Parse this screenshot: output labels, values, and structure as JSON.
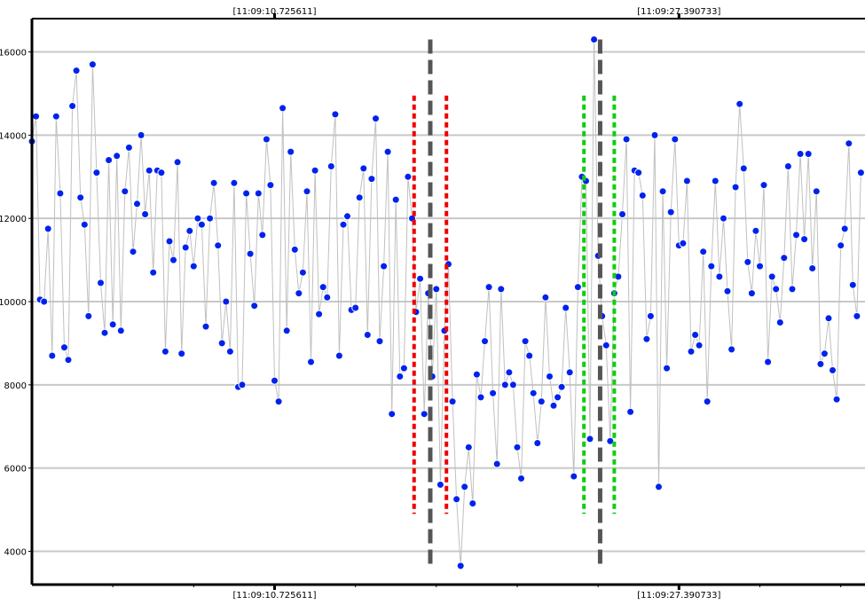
{
  "colors": {
    "background": "#ffffff",
    "grid": "#c8c8c8",
    "axis": "#000000",
    "series_line": "#c0c0c0",
    "series_point": "#0022ee",
    "point_edge": "#ffffff",
    "marker_gray": "#555555",
    "marker_red": "#ee0000",
    "marker_green": "#11cc11"
  },
  "chart_data": {
    "type": "scatter",
    "title": "",
    "xlabel": "",
    "ylabel": "",
    "xlim": [
      0,
      206
    ],
    "ylim": [
      3200,
      16800
    ],
    "grid": {
      "horizontal": true,
      "vertical": false
    },
    "yticks": [
      4000,
      6000,
      8000,
      10000,
      12000,
      14000,
      16000
    ],
    "time_labels": [
      {
        "x": 60,
        "text": "[11:09:10.725611]"
      },
      {
        "x": 160,
        "text": "[11:09:27.390733]"
      }
    ],
    "minor_ticks_x": [
      20,
      40,
      80,
      100,
      120,
      140,
      180,
      200
    ],
    "series": [
      {
        "values": [
          13850,
          14450,
          10050,
          10000,
          11750,
          8700,
          14450,
          12600,
          8900,
          8600,
          14700,
          15550,
          12500,
          11850,
          9650,
          15700,
          13100,
          10450,
          9250,
          13400,
          9450,
          13500,
          9300,
          12650,
          13700,
          11200,
          12350,
          14000,
          12100,
          13150,
          10700,
          13150,
          13100,
          8800,
          11450,
          11000,
          13350,
          8750,
          11300,
          11700,
          10850,
          12000,
          11850,
          9400,
          12000,
          12850,
          11350,
          9000,
          10000,
          8800,
          12850,
          7950,
          8000,
          12600,
          11150,
          9900,
          12600,
          11600,
          13900,
          12800,
          8100,
          7600,
          14650,
          9300,
          13600,
          11250,
          10200,
          10700,
          12650,
          8550,
          13150,
          9700,
          10350,
          10100,
          13250,
          14500,
          8700,
          11850,
          12050,
          9800,
          9850,
          12500,
          13200,
          9200,
          12950,
          14400,
          9050,
          10850,
          13600,
          7300,
          12450,
          8200,
          8400,
          13000,
          12000,
          9750,
          10550,
          7300,
          10200,
          8200,
          10300,
          5600,
          9300,
          10900,
          7600,
          5250,
          3650,
          5550,
          6500,
          5150,
          8250,
          7700,
          9050,
          10350,
          7800,
          6100,
          10300,
          8000,
          8300,
          8000,
          6500,
          5750,
          9050,
          8700,
          7800,
          6600,
          7600,
          10100,
          8200,
          7500,
          7700,
          7950,
          9850,
          8300,
          5800,
          10350,
          13000,
          12900,
          6700,
          16300,
          11100,
          9650,
          8950,
          6650,
          10200,
          10600,
          12100,
          13900,
          7350,
          13150,
          13100,
          12550,
          9100,
          9650,
          14000,
          5550,
          12650,
          8400,
          12150,
          13900,
          11350,
          11400,
          12900,
          8800,
          9200,
          8950,
          11200,
          7600,
          10850,
          12900,
          10600,
          12000,
          10250,
          8850,
          12750,
          14750,
          13200,
          10950,
          10200,
          11700,
          10850,
          12800,
          8550,
          10600,
          10300,
          9500,
          11050,
          13250,
          10300,
          11600,
          13550,
          11500,
          13550,
          10800,
          12650,
          8500,
          8750,
          9600,
          8350,
          7650,
          11350,
          11750,
          13800,
          10400,
          9650,
          13100
        ]
      }
    ],
    "vertical_markers": [
      {
        "x": 98.5,
        "color": "gray",
        "style": "long-dash",
        "from": 3600,
        "to": 16300
      },
      {
        "x": 94.5,
        "color": "red",
        "style": "short-dash",
        "from": 4900,
        "to": 14950
      },
      {
        "x": 102.5,
        "color": "red",
        "style": "short-dash",
        "from": 4900,
        "to": 14950
      },
      {
        "x": 136.5,
        "color": "green",
        "style": "short-dash",
        "from": 4900,
        "to": 14950
      },
      {
        "x": 144,
        "color": "green",
        "style": "short-dash",
        "from": 4900,
        "to": 14950
      },
      {
        "x": 140.5,
        "color": "gray",
        "style": "long-dash",
        "from": 3600,
        "to": 16300
      }
    ]
  }
}
